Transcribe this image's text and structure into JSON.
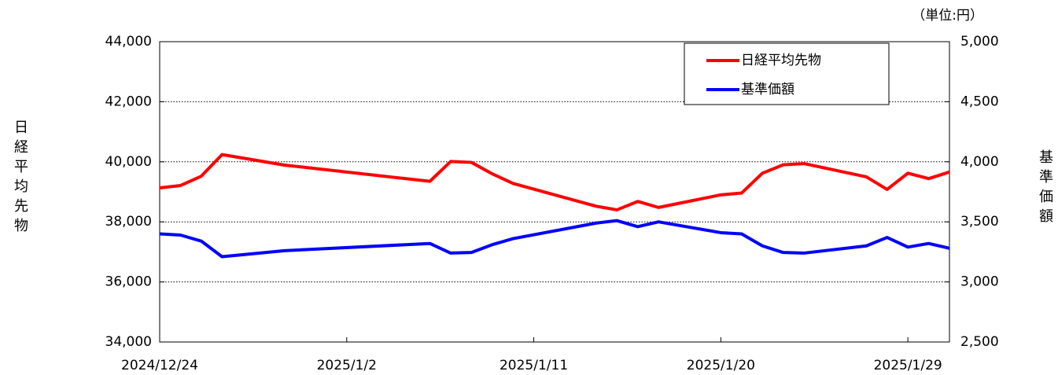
{
  "chart_data": {
    "type": "line",
    "annotation": "（単位:円）",
    "y_label": "日経平均先物",
    "y2_label": "基準価額",
    "x": [
      "2024/12/24",
      "2024/12/25",
      "2024/12/26",
      "2024/12/27",
      "2024/12/30",
      "2025/1/6",
      "2025/1/7",
      "2025/1/8",
      "2025/1/9",
      "2025/1/10",
      "2025/1/14",
      "2025/1/15",
      "2025/1/16",
      "2025/1/17",
      "2025/1/20",
      "2025/1/21",
      "2025/1/22",
      "2025/1/23",
      "2025/1/24",
      "2025/1/27",
      "2025/1/28",
      "2025/1/29",
      "2025/1/30",
      "2025/1/31"
    ],
    "series": [
      {
        "name": "日経平均先物",
        "color": "#ff0000",
        "values": [
          39130,
          39210,
          39520,
          40240,
          39890,
          39350,
          40010,
          39980,
          39600,
          39280,
          38520,
          38400,
          38680,
          38480,
          38900,
          38960,
          39620,
          39900,
          39940,
          39500,
          39080,
          39620,
          39440,
          39660
        ]
      },
      {
        "name": "基準価額",
        "color": "#0000ff",
        "axis": "y2",
        "values": [
          3400,
          3390,
          3340,
          3210,
          3260,
          3320,
          3240,
          3245,
          3310,
          3360,
          3490,
          3510,
          3460,
          3500,
          3410,
          3400,
          3300,
          3245,
          3240,
          3300,
          3370,
          3290,
          3320,
          3280
        ]
      }
    ],
    "xlim": [
      "2024/12/24",
      "2025/1/31"
    ],
    "xticks": [
      "2024/12/24",
      "2025/1/2",
      "2025/1/11",
      "2025/1/20",
      "2025/1/29"
    ],
    "ylim": [
      34000,
      44000
    ],
    "yticks": [
      {
        "value": 34000,
        "label": "34,000"
      },
      {
        "value": 36000,
        "label": "36,000"
      },
      {
        "value": 38000,
        "label": "38,000"
      },
      {
        "value": 40000,
        "label": "40,000"
      },
      {
        "value": 42000,
        "label": "42,000"
      },
      {
        "value": 44000,
        "label": "44,000"
      }
    ],
    "y2lim": [
      2500,
      5000
    ],
    "y2ticks": [
      {
        "value": 2500,
        "label": "2,500"
      },
      {
        "value": 3000,
        "label": "3,000"
      },
      {
        "value": 3500,
        "label": "3,500"
      },
      {
        "value": 4000,
        "label": "4,000"
      },
      {
        "value": 4500,
        "label": "4,500"
      },
      {
        "value": 5000,
        "label": "5,000"
      }
    ],
    "grid": true,
    "legend": "upper right"
  }
}
